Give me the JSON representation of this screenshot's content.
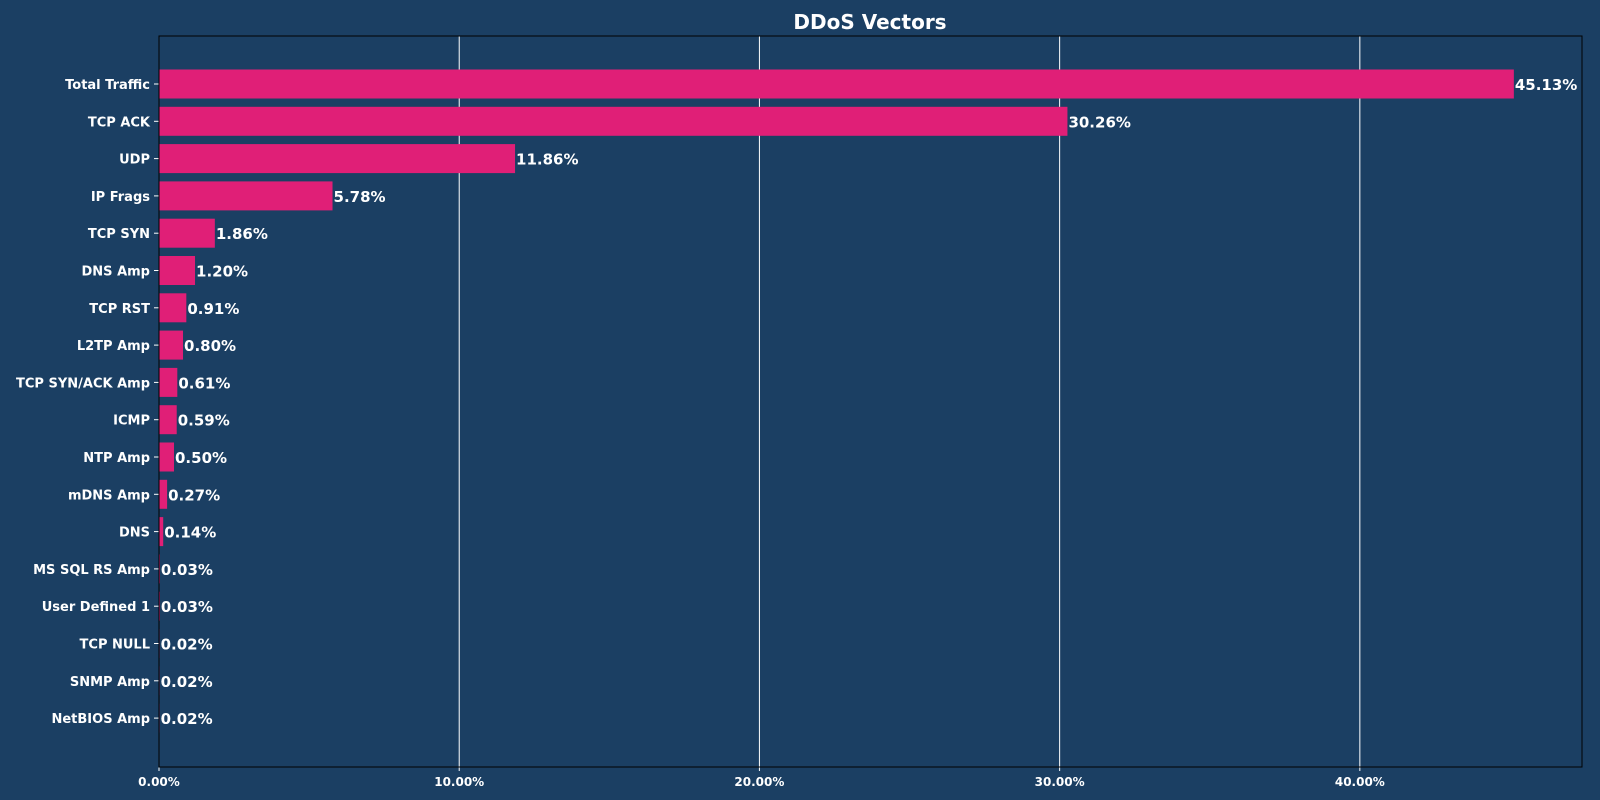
{
  "chart_data": {
    "type": "bar",
    "orientation": "horizontal",
    "title": "DDoS Vectors",
    "xlabel": "",
    "ylabel": "",
    "xlim": [
      0,
      47.4
    ],
    "x_ticks": [
      0,
      10,
      20,
      30,
      40
    ],
    "x_tick_labels": [
      "0.00%",
      "10.00%",
      "20.00%",
      "30.00%",
      "40.00%"
    ],
    "grid": "vertical",
    "categories": [
      "Total Traffic",
      "TCP ACK",
      "UDP",
      "IP Frags",
      "TCP SYN",
      "DNS Amp",
      "TCP RST",
      "L2TP Amp",
      "TCP SYN/ACK Amp",
      "ICMP",
      "NTP Amp",
      "mDNS Amp",
      "DNS",
      "MS SQL RS Amp",
      "User Defined 1",
      "TCP NULL",
      "SNMP Amp",
      "NetBIOS Amp"
    ],
    "values": [
      45.13,
      30.26,
      11.86,
      5.78,
      1.86,
      1.2,
      0.91,
      0.8,
      0.61,
      0.59,
      0.5,
      0.27,
      0.14,
      0.03,
      0.03,
      0.02,
      0.02,
      0.02
    ],
    "value_labels": [
      "45.13%",
      "30.26%",
      "11.86%",
      "5.78%",
      "1.86%",
      "1.20%",
      "0.91%",
      "0.80%",
      "0.61%",
      "0.59%",
      "0.50%",
      "0.27%",
      "0.14%",
      "0.03%",
      "0.03%",
      "0.02%",
      "0.02%",
      "0.02%"
    ],
    "colors": {
      "background": "#1b3f63",
      "bar": "#e01f77",
      "grid": "#ffffff",
      "text": "#ffffff",
      "axis": "#000000"
    }
  }
}
